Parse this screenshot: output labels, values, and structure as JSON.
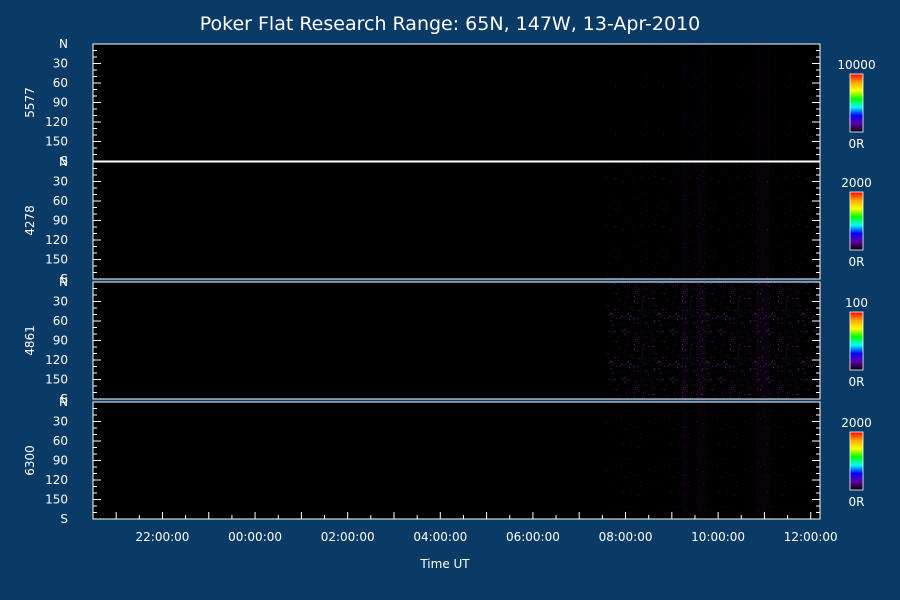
{
  "chart_data": {
    "type": "heatmap",
    "title": "Poker Flat Research Range: 65N, 147W, 13-Apr-2010",
    "xlabel": "Time UT",
    "x_tick_labels": [
      "22:00:00",
      "00:00:00",
      "02:00:00",
      "04:00:00",
      "06:00:00",
      "08:00:00",
      "10:00:00",
      "12:00:00"
    ],
    "x_tick_hours": [
      22,
      24,
      26,
      28,
      30,
      32,
      34,
      36
    ],
    "x_range_hours": [
      20.5,
      36.2
    ],
    "data_start_hour": 31.6,
    "y_tick_labels": [
      "N",
      "30",
      "60",
      "90",
      "120",
      "150",
      "S"
    ],
    "y_range": [
      0,
      180
    ],
    "panels": [
      {
        "channel": "5577",
        "colorbar_max": "10000",
        "colorbar_min": "0R",
        "relative_intensity": 0.02
      },
      {
        "channel": "4278",
        "colorbar_max": "2000",
        "colorbar_min": "0R",
        "relative_intensity": 0.1
      },
      {
        "channel": "4861",
        "colorbar_max": "100",
        "colorbar_min": "0R",
        "relative_intensity": 0.45
      },
      {
        "channel": "6300",
        "colorbar_max": "2000",
        "colorbar_min": "0R",
        "relative_intensity": 0.09
      }
    ],
    "grid": false,
    "colorbar_colors": [
      "#ff0000",
      "#ffa500",
      "#ffff00",
      "#00ff00",
      "#00ffff",
      "#0000ff",
      "#6000a0",
      "#000000"
    ]
  }
}
